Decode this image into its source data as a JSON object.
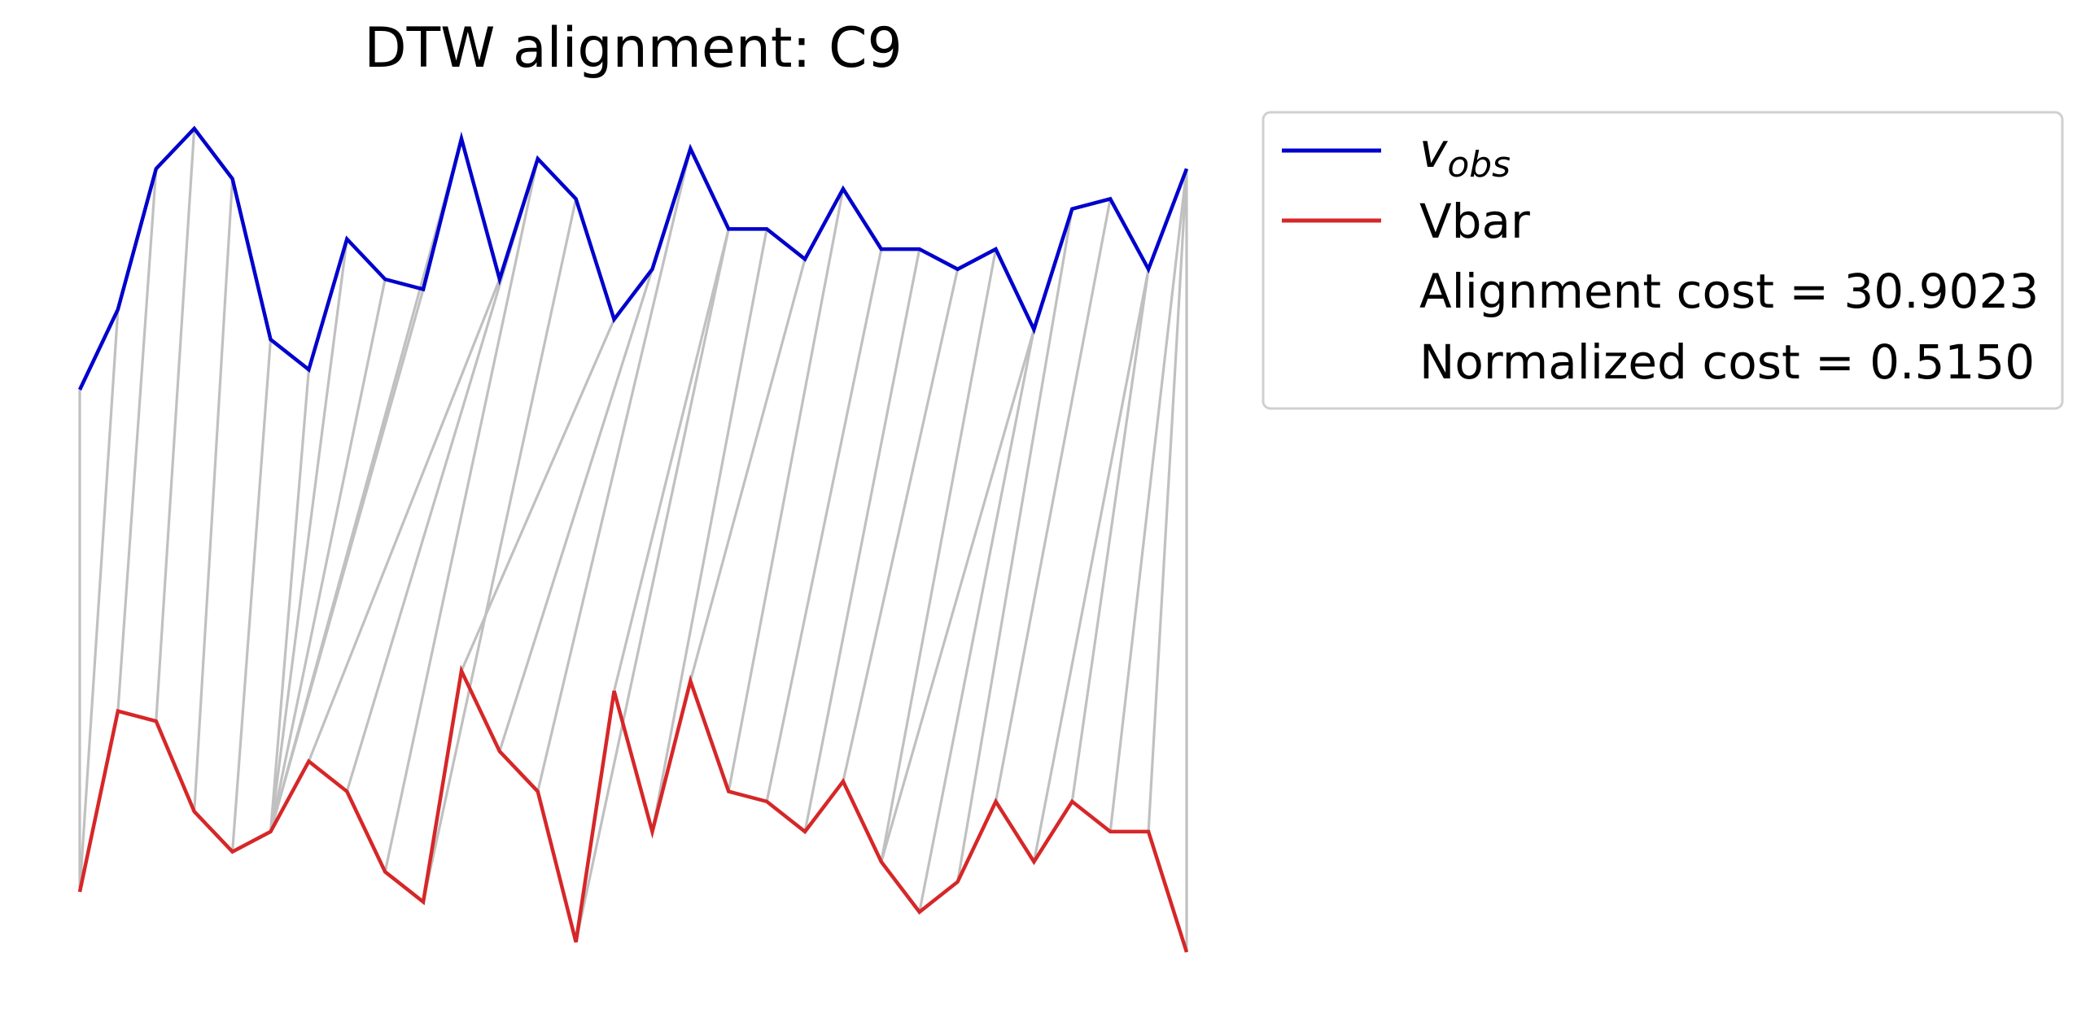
{
  "chart_data": {
    "type": "line",
    "title": "DTW alignment: C9",
    "x": [
      0,
      1,
      2,
      3,
      4,
      5,
      6,
      7,
      8,
      9,
      10,
      11,
      12,
      13,
      14,
      15,
      16,
      17,
      18,
      19,
      20,
      21,
      22,
      23,
      24,
      25,
      26,
      27,
      28,
      29
    ],
    "series": [
      {
        "name": "v_obs",
        "name_main": "v",
        "name_sub": "obs",
        "color": "#0000cc",
        "values": [
          0.82,
          0.9,
          1.04,
          1.08,
          1.03,
          0.87,
          0.84,
          0.97,
          0.93,
          0.92,
          1.07,
          0.93,
          1.05,
          1.01,
          0.89,
          0.94,
          1.06,
          0.98,
          0.98,
          0.95,
          1.02,
          0.96,
          0.96,
          0.94,
          0.96,
          0.88,
          1.0,
          1.01,
          0.94,
          1.04
        ]
      },
      {
        "name": "Vbar",
        "color": "#d62728",
        "values": [
          0.32,
          0.5,
          0.49,
          0.4,
          0.36,
          0.38,
          0.45,
          0.42,
          0.34,
          0.31,
          0.54,
          0.46,
          0.42,
          0.27,
          0.52,
          0.38,
          0.53,
          0.42,
          0.41,
          0.38,
          0.43,
          0.35,
          0.3,
          0.33,
          0.41,
          0.35,
          0.41,
          0.38,
          0.38,
          0.26
        ]
      }
    ],
    "alignment_path": [
      [
        0,
        0
      ],
      [
        1,
        0
      ],
      [
        2,
        1
      ],
      [
        3,
        2
      ],
      [
        4,
        3
      ],
      [
        5,
        4
      ],
      [
        6,
        5
      ],
      [
        7,
        5
      ],
      [
        8,
        5
      ],
      [
        9,
        5
      ],
      [
        10,
        5
      ],
      [
        11,
        6
      ],
      [
        12,
        7
      ],
      [
        12,
        8
      ],
      [
        13,
        9
      ],
      [
        14,
        10
      ],
      [
        15,
        11
      ],
      [
        16,
        12
      ],
      [
        17,
        13
      ],
      [
        17,
        14
      ],
      [
        18,
        15
      ],
      [
        19,
        16
      ],
      [
        20,
        17
      ],
      [
        21,
        18
      ],
      [
        22,
        19
      ],
      [
        23,
        20
      ],
      [
        24,
        21
      ],
      [
        25,
        21
      ],
      [
        25,
        22
      ],
      [
        26,
        23
      ],
      [
        27,
        24
      ],
      [
        28,
        25
      ],
      [
        28,
        26
      ],
      [
        29,
        27
      ],
      [
        29,
        28
      ],
      [
        29,
        29
      ]
    ],
    "path_color": "#c0c0c0",
    "legend": {
      "placement": "outside-right",
      "annotations": [
        "Alignment cost = 30.9023",
        "Normalized cost = 0.5150"
      ]
    },
    "grid": false,
    "axes_visible": false
  }
}
